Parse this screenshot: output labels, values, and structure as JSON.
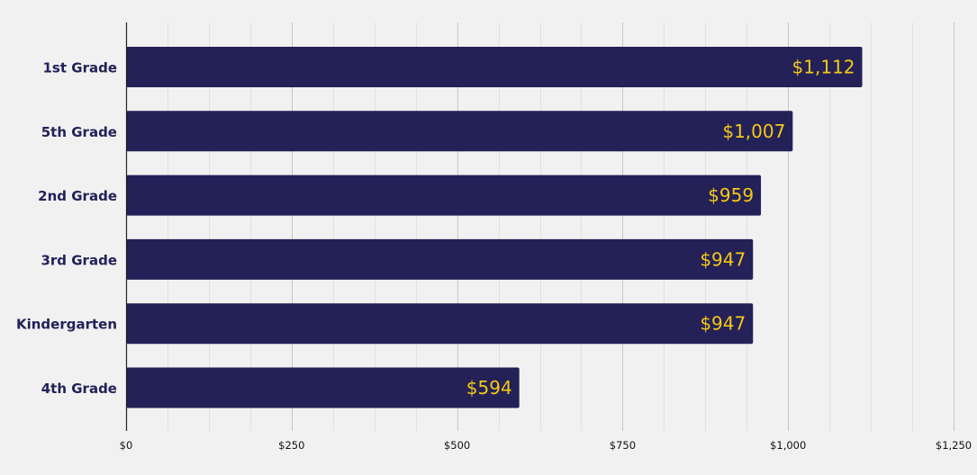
{
  "chart_data": {
    "type": "bar",
    "orientation": "horizontal",
    "categories": [
      "1st Grade",
      "5th Grade",
      "2nd Grade",
      "3rd Grade",
      "Kindergarten",
      "4th Grade"
    ],
    "values": [
      1112,
      1007,
      959,
      947,
      947,
      594
    ],
    "data_labels": [
      "$1,112",
      "$1,007",
      "$959",
      "$947",
      "$947",
      "$594"
    ],
    "x_ticks": [
      0,
      250,
      500,
      750,
      1000,
      1250
    ],
    "x_tick_labels": [
      "$0",
      "$250",
      "$500",
      "$750",
      "$1,000",
      "$1,250"
    ],
    "xlim": [
      0,
      1250
    ],
    "title": "",
    "xlabel": "",
    "ylabel": "",
    "grid": true,
    "colors": {
      "bar": "#232157",
      "data_label": "#f5c816",
      "category_label": "#232157",
      "background": "#f1f1f1"
    }
  }
}
